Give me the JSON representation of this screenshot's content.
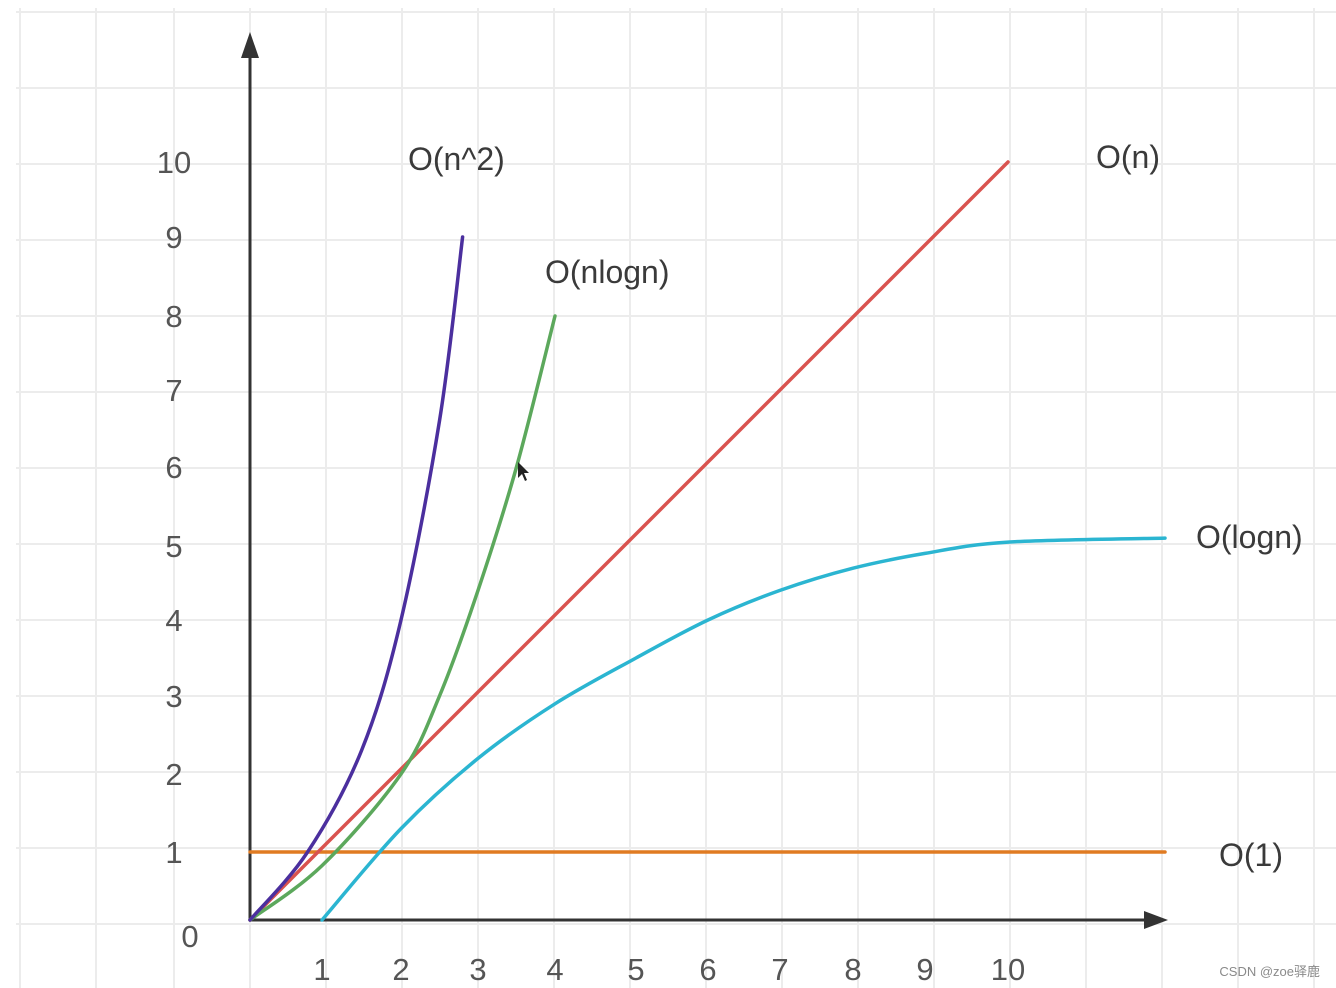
{
  "chart_data": {
    "type": "line",
    "title": "",
    "xlabel": "",
    "ylabel": "",
    "x_ticks": [
      "1",
      "2",
      "3",
      "4",
      "5",
      "6",
      "7",
      "8",
      "9",
      "10"
    ],
    "y_ticks": [
      "0",
      "1",
      "2",
      "3",
      "4",
      "5",
      "6",
      "7",
      "8",
      "9",
      "10"
    ],
    "grid": true,
    "series": [
      {
        "name": "O(1)",
        "color": "#e07b22",
        "x": [
          0,
          12
        ],
        "y": [
          1,
          1
        ]
      },
      {
        "name": "O(logn)",
        "color": "#2bb5d1",
        "x": [
          1,
          2,
          3,
          4,
          5,
          6,
          7,
          8,
          9,
          10,
          12
        ],
        "y": [
          0,
          1.3,
          2.2,
          2.9,
          3.5,
          4.0,
          4.4,
          4.7,
          4.9,
          5.05,
          5.1
        ]
      },
      {
        "name": "O(n)",
        "color": "#d9534f",
        "x": [
          0,
          10
        ],
        "y": [
          0,
          10
        ]
      },
      {
        "name": "O(nlogn)",
        "color": "#5ca85c",
        "x": [
          0,
          1,
          2,
          2.5,
          3,
          3.5,
          4
        ],
        "y": [
          0,
          0.8,
          2.0,
          3.0,
          4.4,
          6.0,
          8.0
        ]
      },
      {
        "name": "O(n^2)",
        "color": "#4b2f9e",
        "x": [
          0,
          0.8,
          1.5,
          2.0,
          2.5,
          2.8
        ],
        "y": [
          0,
          1.0,
          2.3,
          4.0,
          6.6,
          9.0
        ]
      }
    ]
  },
  "watermark": "CSDN @zoe驿鹿"
}
